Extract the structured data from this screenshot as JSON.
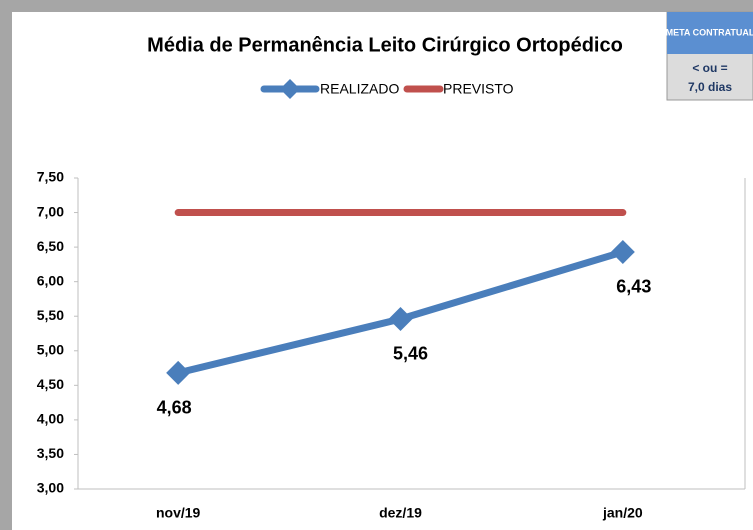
{
  "chart_data": {
    "type": "line",
    "title": "Média de Permanência Leito Cirúrgico Ortopédico",
    "categories": [
      "nov/19",
      "dez/19",
      "jan/20"
    ],
    "series": [
      {
        "name": "REALIZADO",
        "color": "#4a7ebb",
        "values": [
          4.68,
          5.46,
          6.43
        ],
        "value_labels": [
          "4,68",
          "5,46",
          "6,43"
        ],
        "marker": "diamond"
      },
      {
        "name": "PREVISTO",
        "color": "#c0504d",
        "values": [
          7.0,
          7.0,
          7.0
        ]
      }
    ],
    "ylim": [
      3.0,
      7.5
    ],
    "yticks": [
      {
        "value": 3.0,
        "label": "3,00"
      },
      {
        "value": 3.5,
        "label": "3,50"
      },
      {
        "value": 4.0,
        "label": "4,00"
      },
      {
        "value": 4.5,
        "label": "4,50"
      },
      {
        "value": 5.0,
        "label": "5,00"
      },
      {
        "value": 5.5,
        "label": "5,50"
      },
      {
        "value": 6.0,
        "label": "6,00"
      },
      {
        "value": 6.5,
        "label": "6,50"
      },
      {
        "value": 7.0,
        "label": "7,00"
      },
      {
        "value": 7.5,
        "label": "7,50"
      }
    ],
    "legend": "top",
    "annotation": {
      "title": "META CONTRATUAL",
      "lines": [
        "< ou =",
        "7,0 dias"
      ]
    }
  }
}
